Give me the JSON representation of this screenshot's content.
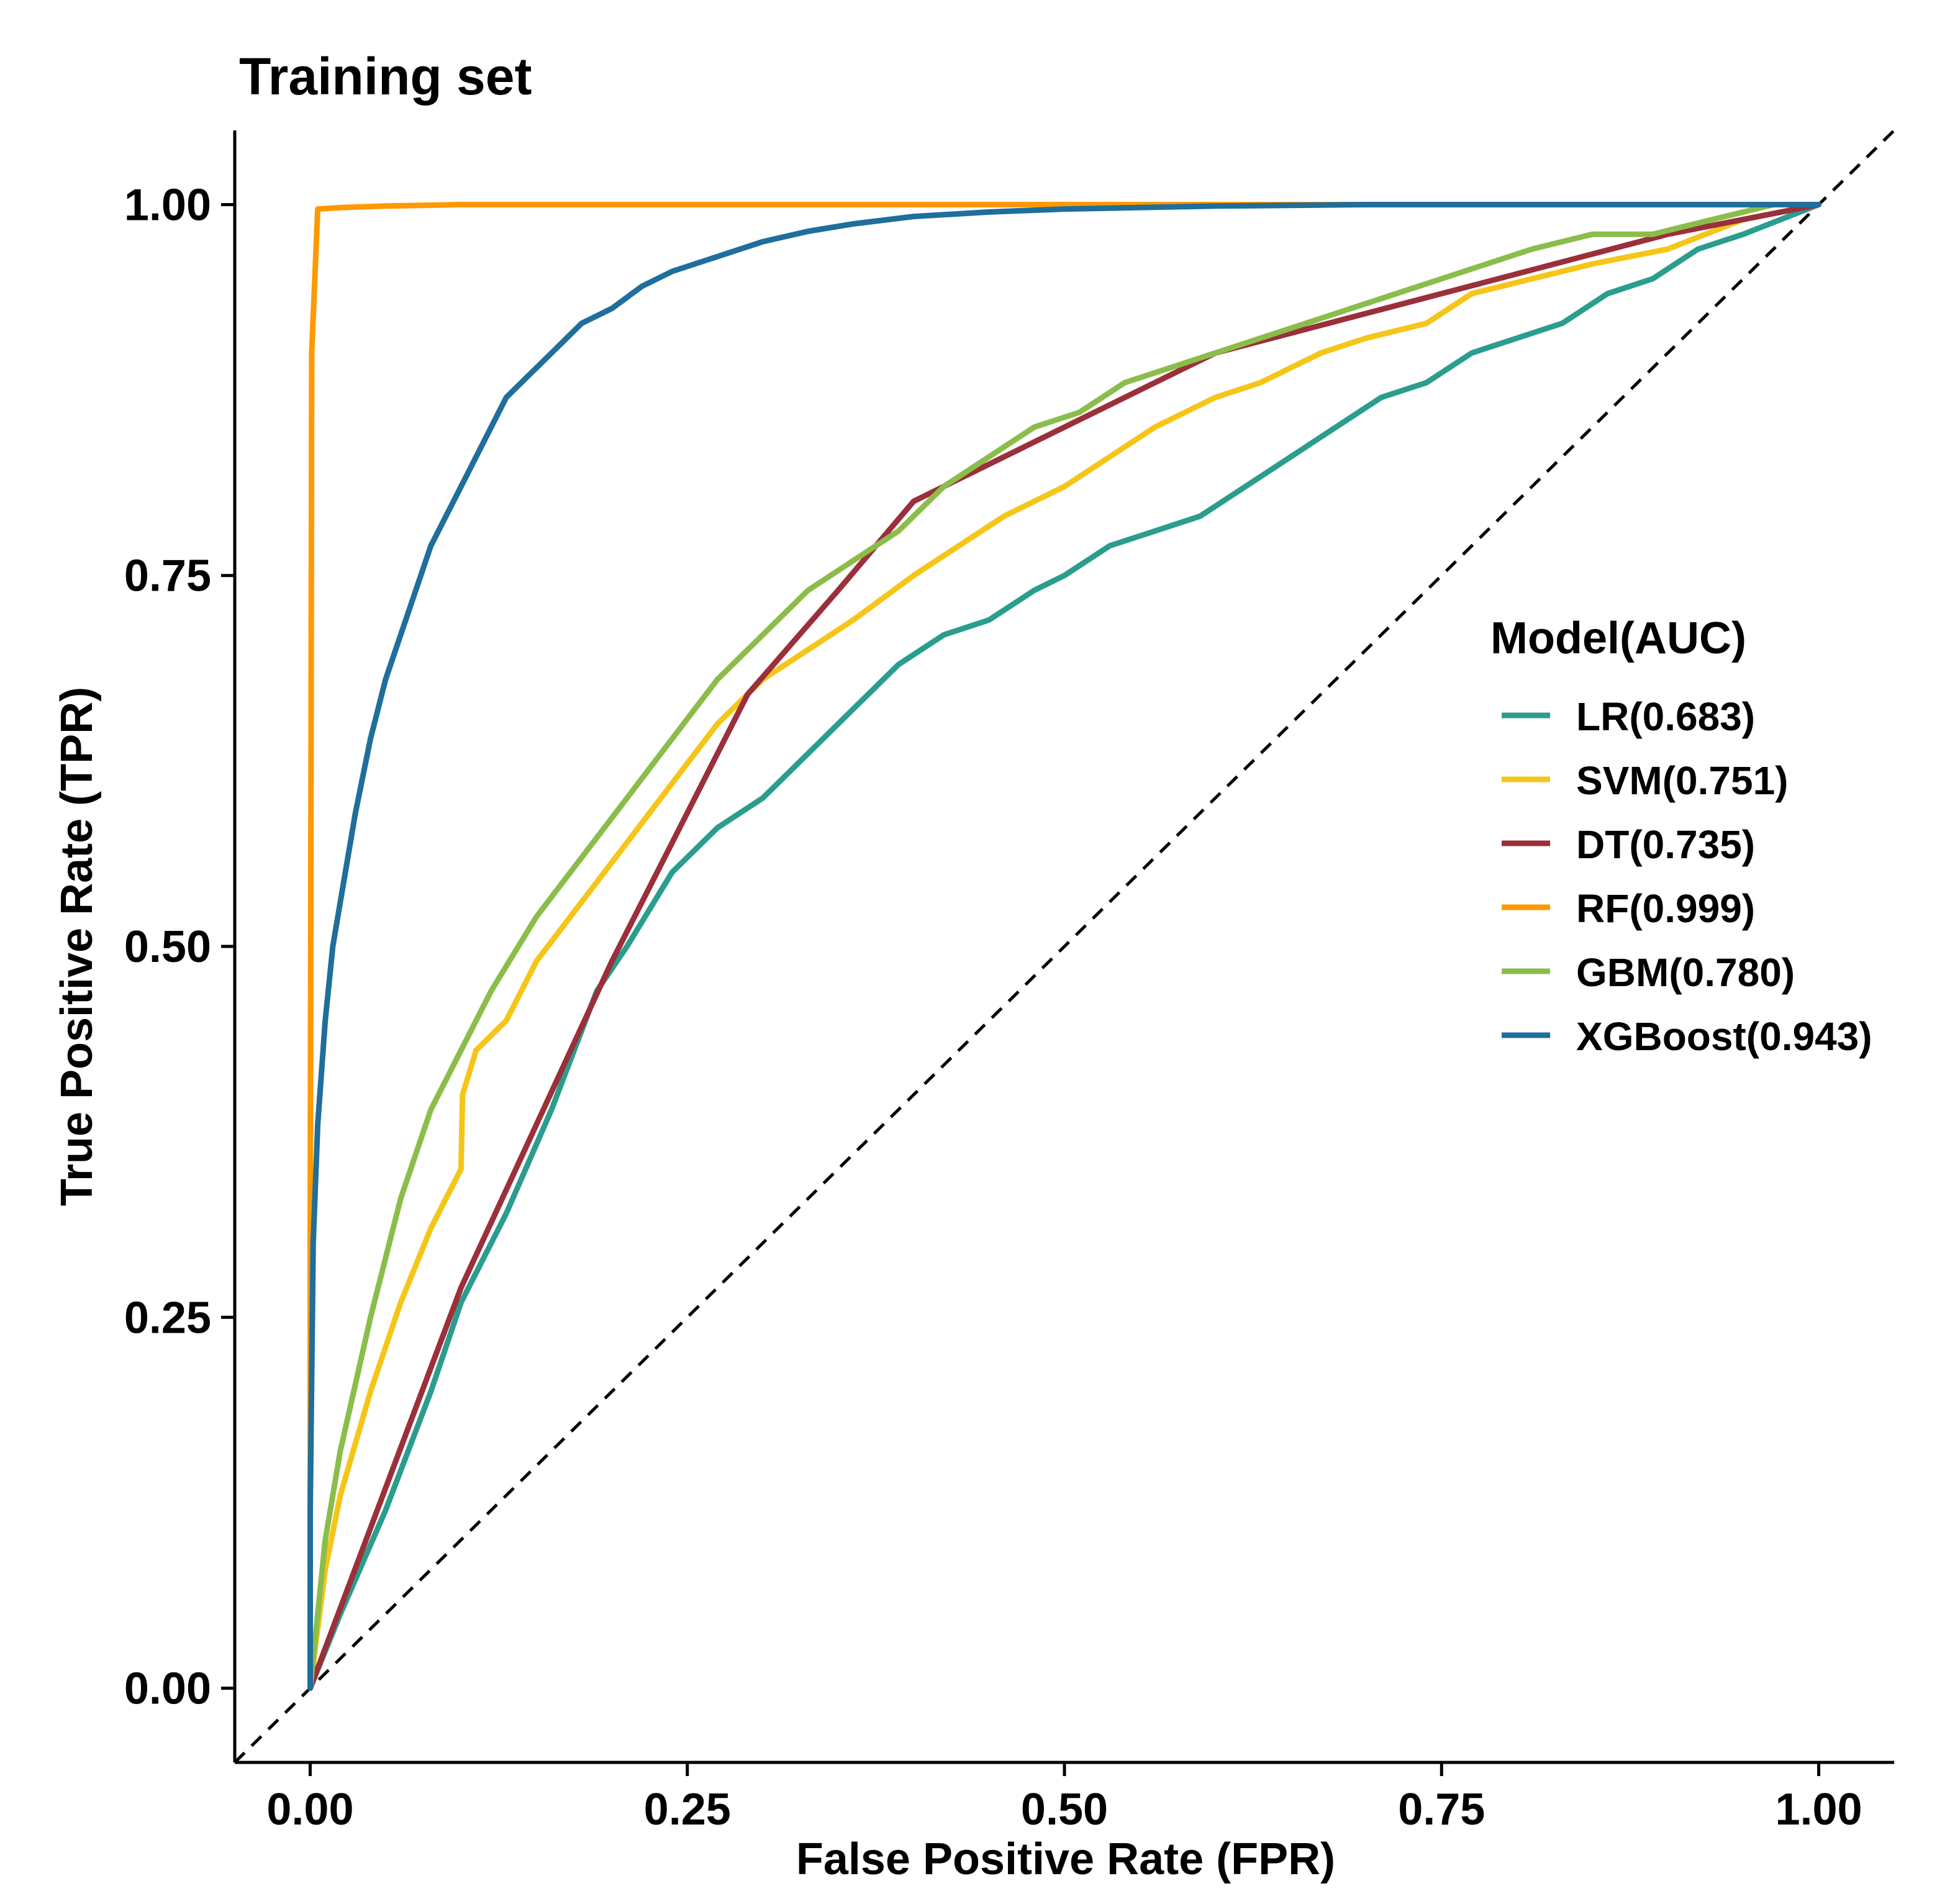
{
  "chart_data": {
    "type": "line",
    "title": "Training set",
    "xlabel": "False Positive Rate (FPR)",
    "ylabel": "True Positive Rate (TPR)",
    "xlim": [
      -0.05,
      1.05
    ],
    "ylim": [
      -0.05,
      1.05
    ],
    "xticks": [
      0,
      0.25,
      0.5,
      0.75,
      1
    ],
    "yticks": [
      0,
      0.25,
      0.5,
      0.75,
      1
    ],
    "xtick_labels": [
      "0.00",
      "0.25",
      "0.50",
      "0.75",
      "1.00"
    ],
    "ytick_labels": [
      "0.00",
      "0.25",
      "0.50",
      "0.75",
      "1.00"
    ],
    "grid": false,
    "legend": {
      "title": "Model(AUC)",
      "position": "right"
    },
    "reference_line": {
      "style": "dashed",
      "color": "#000000",
      "x": [
        -0.05,
        1.05
      ],
      "y": [
        -0.05,
        1.05
      ]
    },
    "series": [
      {
        "name": "LR(0.683)",
        "color": "#2a9d8f",
        "x": [
          0,
          0.02,
          0.05,
          0.08,
          0.1,
          0.13,
          0.16,
          0.19,
          0.21,
          0.24,
          0.27,
          0.3,
          0.33,
          0.36,
          0.39,
          0.42,
          0.45,
          0.48,
          0.5,
          0.53,
          0.56,
          0.59,
          0.62,
          0.65,
          0.68,
          0.71,
          0.74,
          0.77,
          0.8,
          0.83,
          0.86,
          0.89,
          0.92,
          0.95,
          1
        ],
        "y": [
          0,
          0.05,
          0.12,
          0.2,
          0.26,
          0.32,
          0.39,
          0.47,
          0.5,
          0.55,
          0.58,
          0.6,
          0.63,
          0.66,
          0.69,
          0.71,
          0.72,
          0.74,
          0.75,
          0.77,
          0.78,
          0.79,
          0.81,
          0.83,
          0.85,
          0.87,
          0.88,
          0.9,
          0.91,
          0.92,
          0.94,
          0.95,
          0.97,
          0.98,
          1
        ]
      },
      {
        "name": "SVM(0.751)",
        "color": "#f5c518",
        "x": [
          0,
          0.01,
          0.02,
          0.04,
          0.06,
          0.08,
          0.09,
          0.1,
          0.101,
          0.11,
          0.13,
          0.15,
          0.18,
          0.21,
          0.24,
          0.27,
          0.3,
          0.33,
          0.36,
          0.4,
          0.43,
          0.46,
          0.5,
          0.53,
          0.56,
          0.6,
          0.63,
          0.67,
          0.7,
          0.74,
          0.77,
          0.81,
          0.85,
          0.9,
          0.95,
          1
        ],
        "y": [
          0,
          0.08,
          0.13,
          0.2,
          0.26,
          0.31,
          0.33,
          0.35,
          0.4,
          0.43,
          0.45,
          0.49,
          0.53,
          0.57,
          0.61,
          0.65,
          0.68,
          0.7,
          0.72,
          0.75,
          0.77,
          0.79,
          0.81,
          0.83,
          0.85,
          0.87,
          0.88,
          0.9,
          0.91,
          0.92,
          0.94,
          0.95,
          0.96,
          0.97,
          0.99,
          1
        ]
      },
      {
        "name": "DT(0.735)",
        "color": "#9b2f3a",
        "x": [
          0,
          0.1,
          0.2,
          0.25,
          0.29,
          0.35,
          0.4,
          0.5,
          0.6,
          0.75,
          0.9,
          1
        ],
        "y": [
          0,
          0.27,
          0.49,
          0.59,
          0.67,
          0.74,
          0.8,
          0.85,
          0.9,
          0.94,
          0.98,
          1
        ]
      },
      {
        "name": "RF(0.999)",
        "color": "#ff9900",
        "x": [
          0,
          0,
          0.0005,
          0.001,
          0.005,
          0.02,
          0.05,
          0.1,
          0.3,
          1
        ],
        "y": [
          0,
          0.3,
          0.6,
          0.9,
          0.997,
          0.998,
          0.999,
          1,
          1,
          1
        ]
      },
      {
        "name": "GBM(0.780)",
        "color": "#8bbd4a",
        "x": [
          0,
          0.01,
          0.02,
          0.04,
          0.06,
          0.08,
          0.1,
          0.12,
          0.15,
          0.18,
          0.21,
          0.24,
          0.27,
          0.3,
          0.33,
          0.36,
          0.39,
          0.42,
          0.45,
          0.48,
          0.51,
          0.54,
          0.57,
          0.6,
          0.63,
          0.66,
          0.69,
          0.72,
          0.75,
          0.78,
          0.81,
          0.85,
          0.89,
          0.93,
          0.97,
          1
        ],
        "y": [
          0,
          0.1,
          0.16,
          0.25,
          0.33,
          0.39,
          0.43,
          0.47,
          0.52,
          0.56,
          0.6,
          0.64,
          0.68,
          0.71,
          0.74,
          0.76,
          0.78,
          0.81,
          0.83,
          0.85,
          0.86,
          0.88,
          0.89,
          0.9,
          0.91,
          0.92,
          0.93,
          0.94,
          0.95,
          0.96,
          0.97,
          0.98,
          0.98,
          0.99,
          1,
          1
        ]
      },
      {
        "name": "XGBoost(0.943)",
        "color": "#1f6e9c",
        "x": [
          0,
          0,
          0.002,
          0.005,
          0.01,
          0.015,
          0.02,
          0.03,
          0.04,
          0.05,
          0.06,
          0.07,
          0.08,
          0.09,
          0.1,
          0.11,
          0.12,
          0.13,
          0.14,
          0.15,
          0.16,
          0.17,
          0.18,
          0.2,
          0.22,
          0.24,
          0.27,
          0.3,
          0.33,
          0.36,
          0.4,
          0.45,
          0.5,
          0.6,
          0.7,
          0.8,
          0.9,
          1
        ],
        "y": [
          0,
          0.12,
          0.3,
          0.38,
          0.45,
          0.5,
          0.53,
          0.59,
          0.64,
          0.68,
          0.71,
          0.74,
          0.77,
          0.79,
          0.81,
          0.83,
          0.85,
          0.87,
          0.88,
          0.89,
          0.9,
          0.91,
          0.92,
          0.93,
          0.945,
          0.955,
          0.965,
          0.975,
          0.982,
          0.987,
          0.992,
          0.995,
          0.997,
          0.999,
          1,
          1,
          1,
          1
        ]
      }
    ]
  }
}
